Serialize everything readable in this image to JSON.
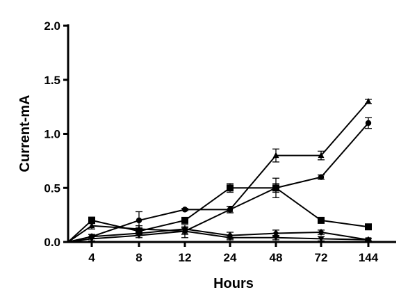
{
  "chart_data": {
    "type": "line",
    "title": "",
    "xlabel": "Hours",
    "ylabel": "Current-mA",
    "categories": [
      "4",
      "8",
      "12",
      "24",
      "48",
      "72",
      "144"
    ],
    "ylim": [
      0,
      2.0
    ],
    "yticks": [
      "0.0",
      "0.5",
      "1.0",
      "1.5",
      "2.0"
    ],
    "grid": false,
    "legend": "none",
    "origin_x": 0,
    "series": [
      {
        "marker": "triangle",
        "values": [
          0.15,
          0.12,
          0.1,
          0.3,
          0.8,
          0.8,
          1.3
        ],
        "errors": [
          0.03,
          0.03,
          0.03,
          0.03,
          0.06,
          0.04,
          0.02
        ]
      },
      {
        "marker": "circle",
        "values": [
          0.05,
          0.2,
          0.3,
          0.3,
          0.5,
          0.6,
          1.1
        ],
        "errors": [
          0.02,
          0.08,
          0.01,
          0.03,
          0.09,
          0.02,
          0.05
        ]
      },
      {
        "marker": "square",
        "values": [
          0.2,
          0.1,
          0.2,
          0.5,
          0.5,
          0.2,
          0.14
        ],
        "errors": [
          0.03,
          0.03,
          0.02,
          0.04,
          0.04,
          0.02,
          0.02
        ]
      },
      {
        "marker": "diamond",
        "values": [
          0.05,
          0.08,
          0.12,
          0.06,
          0.08,
          0.09,
          0.02
        ],
        "errors": [
          0.02,
          0.02,
          0.02,
          0.03,
          0.03,
          0.02,
          0.01
        ]
      },
      {
        "marker": "triangle-down",
        "values": [
          0.03,
          0.06,
          0.1,
          0.04,
          0.04,
          0.03,
          0.02
        ],
        "errors": [
          0.02,
          0.02,
          0.06,
          0.02,
          0.02,
          0.02,
          0.01
        ]
      }
    ]
  }
}
